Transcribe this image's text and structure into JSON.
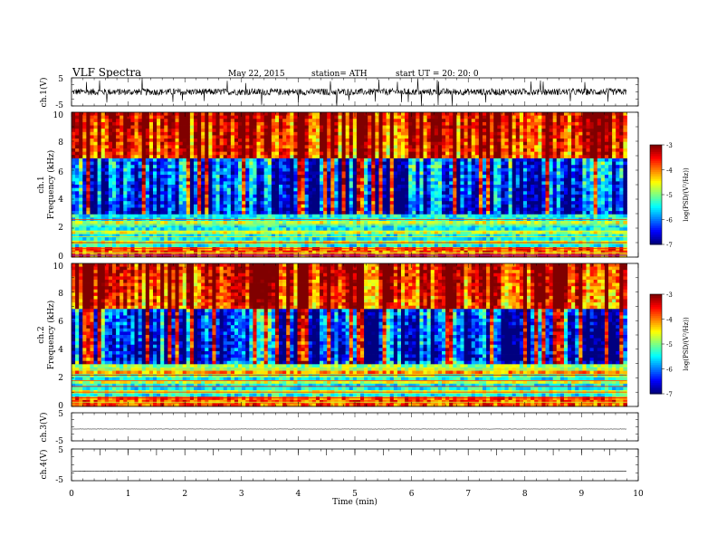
{
  "header": {
    "title": "VLF  Spectra",
    "date": "May 22, 2015",
    "station": "station= ATH",
    "start": "start  UT  =    20: 20: 0"
  },
  "chart_data": [
    {
      "type": "line",
      "panel": "ch1-waveform",
      "ylabel": "ch.1(V)",
      "ylim": [
        -5,
        5
      ],
      "y_ticks": [
        "5",
        "-5"
      ],
      "baseline": 0,
      "amplitude_typical": 1.2,
      "spike_max": 5,
      "x_extent_min": 9.8
    },
    {
      "type": "heatmap",
      "panel": "ch1-spectrogram",
      "ylabel_top": "ch.1",
      "ylabel": "Frequency  (kHz)",
      "ylim": [
        0,
        10
      ],
      "y_ticks": [
        "0",
        "2",
        "4",
        "6",
        "8",
        "10"
      ],
      "x_extent_min": 9.8,
      "colorbar": {
        "label": "log(PSD/(V²/Hz))",
        "range": [
          -7,
          -3
        ],
        "ticks": [
          "-3",
          "-4",
          "-5",
          "-6",
          "-7"
        ],
        "colormap": "jet"
      }
    },
    {
      "type": "heatmap",
      "panel": "ch2-spectrogram",
      "ylabel_top": "ch.2",
      "ylabel": "Frequency  (kHz)",
      "ylim": [
        0,
        10
      ],
      "y_ticks": [
        "0",
        "2",
        "4",
        "6",
        "8",
        "10"
      ],
      "x_extent_min": 9.8,
      "colorbar": {
        "label": "log(PSD/(V²/Hz))",
        "range": [
          -7,
          -3
        ],
        "ticks": [
          "-3",
          "-4",
          "-5",
          "-6",
          "-7"
        ],
        "colormap": "jet"
      }
    },
    {
      "type": "line",
      "panel": "ch3-waveform",
      "ylabel": "ch.3(V)",
      "ylim": [
        -5,
        5
      ],
      "y_ticks": [
        "5",
        "-5"
      ],
      "baseline": -0.8,
      "x_extent_min": 9.8
    },
    {
      "type": "line",
      "panel": "ch4-waveform",
      "ylabel": "ch.4(V)",
      "ylim": [
        -5,
        5
      ],
      "y_ticks": [
        "5",
        "-5"
      ],
      "baseline": -2,
      "x_extent_min": 9.8
    }
  ],
  "xaxis": {
    "label": "Time  (min)",
    "ticks": [
      "0",
      "1",
      "2",
      "3",
      "4",
      "5",
      "6",
      "7",
      "8",
      "9",
      "10"
    ],
    "xlim": [
      0,
      10
    ]
  },
  "colors": {
    "frame": "#000000",
    "trace": "#000000",
    "colormap": [
      "#000080",
      "#0000ff",
      "#00c8ff",
      "#00ff80",
      "#80ff00",
      "#ffff00",
      "#ffa000",
      "#ff0000",
      "#ffffff"
    ]
  }
}
